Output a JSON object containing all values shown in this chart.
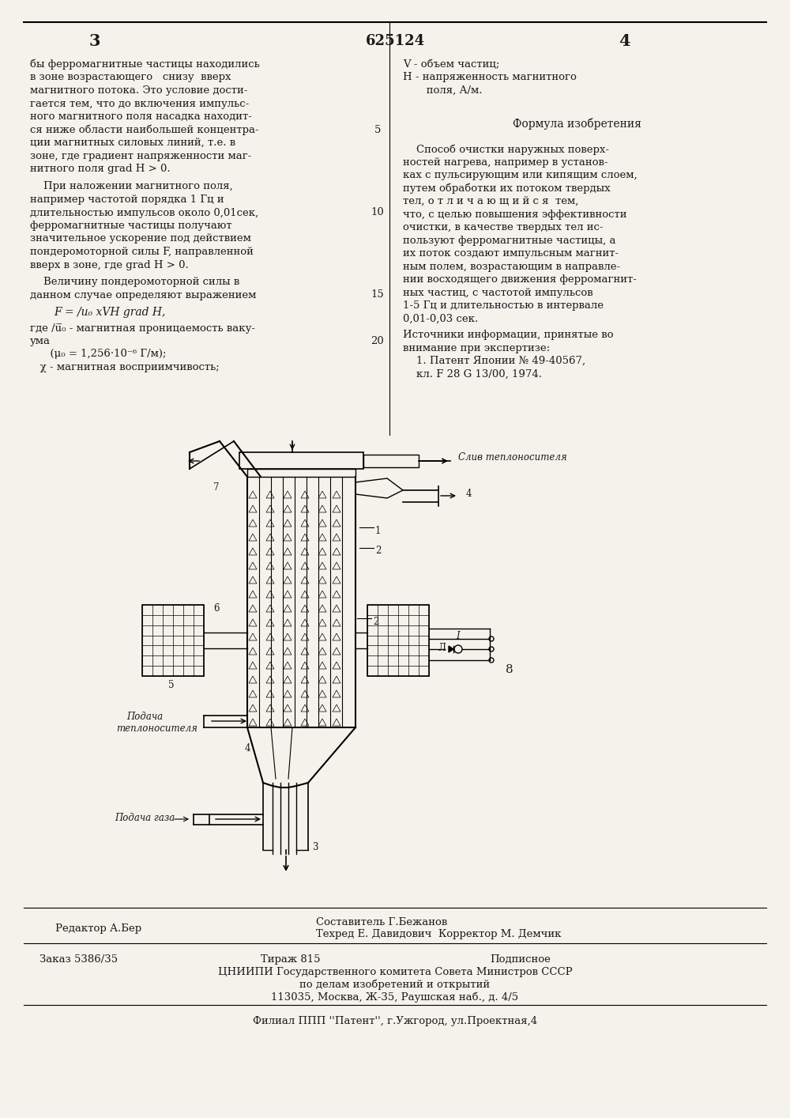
{
  "page_width": 10.0,
  "page_height": 14.14,
  "bg_color": "#f5f2eb",
  "text_color": "#1a1a1a",
  "title_center": "625124",
  "page_num_left": "3",
  "page_num_right": "4",
  "left_col_text": "бы ферромагнитные частицы находились\nв зоне возрастающего   снизу  вверх\nмагнитного потока. Это условие дости-\nгается тем, что до включения импульс-\nного магнитного поля насадка находит-\nся ниже области наибольшей концентра-\nции магнитных силовых линий, т.е. в\nзоне, где градиент напряженности маг-\nнитного поля grad H > 0.",
  "left_col2_text": "    При наложении магнитного поля,\nнапример частотой порядка 1 Гц и\nдлительностью импульсов около 0,01сек,\nферромагнитные частицы получают\nзначительное ускорение под действием\nпондеромоторной силы F, направленной\nвверх в зоне, где grad H > 0.",
  "left_formula_intro1": "    Величину пондеромоторной силы в",
  "left_formula_intro2": "данном случае определяют выражением",
  "formula_main": "F = /u₀ xVH grad H,",
  "where_line1": "где /u̅₀ - магнитная проницаемость ваку-",
  "where_line2": "ума",
  "where_line3": "      (μ₀ = 1,256·10⁻⁶ Г/м);",
  "where_line4": "   χ - магнитная восприимчивость;",
  "right_v_line": "V - объем частиц;",
  "right_h_line1": "H - напряженность магнитного",
  "right_h_line2": "       поля, А/м.",
  "formula_izobr_title": "Формула изобретения",
  "right_main_text": "    Способ очистки наружных поверх-\nностей нагрева, например в установ-\nках с пульсирующим или кипящим слоем,\nпутем обработки их потоком твердых\nтел, о т л и ч а ю щ и й с я  тем,\nчто, с целью повышения эффективности\nочистки, в качестве твердых тел ис-\nпользуют ферромагнитные частицы, а\nих поток создают импульсным магнит-\nным полем, возрастающим в направле-\nнии восходящего движения ферромагнит-\nных частиц, с частотой импульсов\n1-5 Гц и длительностью в интервале\n0,01-0,03 сек.",
  "sources_hdr1": "Источники информации, принятые во",
  "sources_hdr2": "внимание при экспертизе:",
  "source1": "    1. Патент Японии № 49-40567,",
  "source2": "    кл. F 28 G 13/00, 1974.",
  "line_num_5": "5",
  "line_num_10": "10",
  "line_num_15": "15",
  "line_num_20": "20",
  "editor_line": "Редактор А.Бер",
  "comp_line1": "Составитель Г.Бежанов",
  "comp_line2": "Техред Е. Давидович  Корректор М. Демчик",
  "order_str": "Заказ 5386/35",
  "tirazh_str": "Тираж 815",
  "podp_str": "Подписное",
  "inst_line1": "ЦНИИПИ Государственного комитета Совета Министров СССР",
  "inst_line2": "по делам изобретений и открытий",
  "inst_line3": "113035, Москва, Ж-35, Раушская наб., д. 4/5",
  "patent_line": "Филиал ППП ''Патент'', г.Ужгород, ул.Проектная,4"
}
